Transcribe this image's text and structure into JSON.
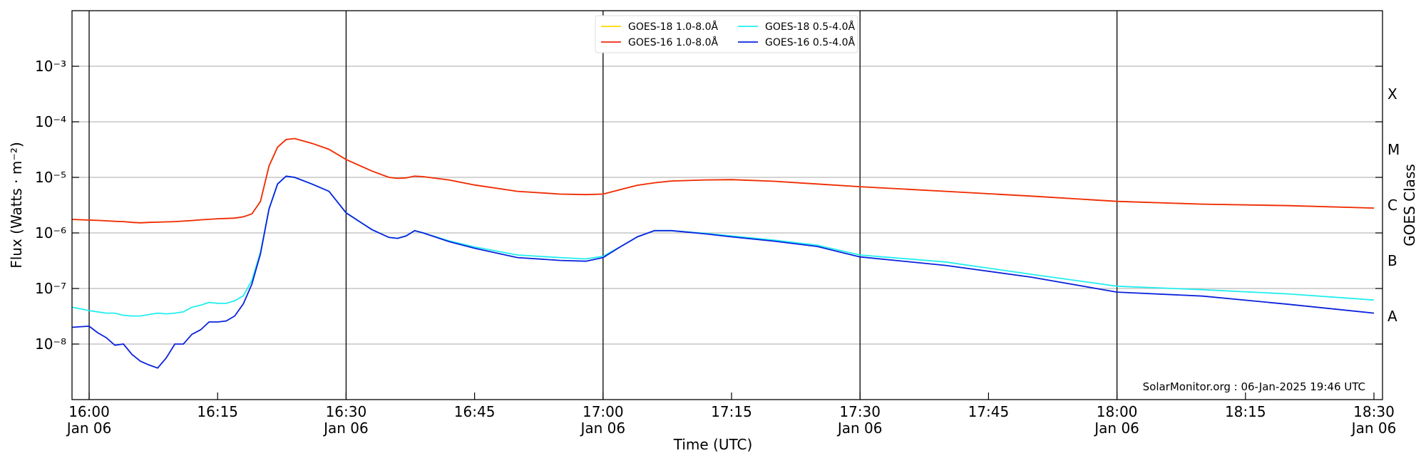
{
  "chart_data": {
    "type": "line",
    "xlabel": "Time (UTC)",
    "ylabel": "Flux (Watts · m⁻²)",
    "y2label": "GOES Class",
    "annotation": "SolarMonitor.org : 06-Jan-2025 19:46 UTC",
    "log_y": true,
    "grid": true,
    "legend": "upper center",
    "x": [
      "15:58",
      "16:00",
      "16:01",
      "16:02",
      "16:03",
      "16:04",
      "16:05",
      "16:06",
      "16:07",
      "16:08",
      "16:09",
      "16:10",
      "16:11",
      "16:12",
      "16:13",
      "16:14",
      "16:15",
      "16:16",
      "16:17",
      "16:18",
      "16:19",
      "16:20",
      "16:21",
      "16:22",
      "16:23",
      "16:24",
      "16:26",
      "16:28",
      "16:30",
      "16:33",
      "16:35",
      "16:36",
      "16:37",
      "16:38",
      "16:39",
      "16:42",
      "16:45",
      "16:50",
      "16:55",
      "16:58",
      "17:00",
      "17:02",
      "17:04",
      "17:06",
      "17:08",
      "17:12",
      "17:15",
      "17:20",
      "17:25",
      "17:30",
      "17:40",
      "17:50",
      "18:00",
      "18:10",
      "18:20",
      "18:30"
    ],
    "series": [
      {
        "name": "GOES-18 1.0-8.0Å",
        "color": "#ffd700",
        "values": [
          1.75e-06,
          1.7e-06,
          1.68e-06,
          1.65e-06,
          1.62e-06,
          1.6e-06,
          1.55e-06,
          1.52e-06,
          1.55e-06,
          1.56e-06,
          1.58e-06,
          1.6e-06,
          1.63e-06,
          1.67e-06,
          1.72e-06,
          1.76e-06,
          1.8e-06,
          1.82e-06,
          1.85e-06,
          1.95e-06,
          2.2e-06,
          3.7e-06,
          1.6e-05,
          3.5e-05,
          4.8e-05,
          5e-05,
          4.1e-05,
          3.2e-05,
          2.1e-05,
          1.3e-05,
          1e-05,
          9.6e-06,
          9.8e-06,
          1.05e-05,
          1.03e-05,
          9e-06,
          7.3e-06,
          5.6e-06,
          5e-06,
          4.9e-06,
          5e-06,
          6e-06,
          7.2e-06,
          8e-06,
          8.6e-06,
          9e-06,
          9.1e-06,
          8.5e-06,
          7.6e-06,
          6.8e-06,
          5.6e-06,
          4.6e-06,
          3.7e-06,
          3.3e-06,
          3.1e-06,
          2.8e-06
        ]
      },
      {
        "name": "GOES-16 1.0-8.0Å",
        "color": "#f02a10",
        "values": [
          1.75e-06,
          1.7e-06,
          1.68e-06,
          1.65e-06,
          1.62e-06,
          1.6e-06,
          1.55e-06,
          1.52e-06,
          1.55e-06,
          1.56e-06,
          1.58e-06,
          1.6e-06,
          1.63e-06,
          1.67e-06,
          1.72e-06,
          1.76e-06,
          1.8e-06,
          1.82e-06,
          1.85e-06,
          1.95e-06,
          2.2e-06,
          3.7e-06,
          1.6e-05,
          3.5e-05,
          4.8e-05,
          5e-05,
          4.1e-05,
          3.2e-05,
          2.1e-05,
          1.3e-05,
          1e-05,
          9.6e-06,
          9.8e-06,
          1.05e-05,
          1.03e-05,
          9e-06,
          7.3e-06,
          5.6e-06,
          5e-06,
          4.9e-06,
          5e-06,
          6e-06,
          7.2e-06,
          8e-06,
          8.6e-06,
          9e-06,
          9.1e-06,
          8.5e-06,
          7.6e-06,
          6.8e-06,
          5.6e-06,
          4.6e-06,
          3.7e-06,
          3.3e-06,
          3.1e-06,
          2.8e-06
        ]
      },
      {
        "name": "GOES-18 0.5-4.0Å",
        "color": "#22eeee",
        "values": [
          4.6e-08,
          4e-08,
          3.8e-08,
          3.6e-08,
          3.6e-08,
          3.3e-08,
          3.2e-08,
          3.2e-08,
          3.4e-08,
          3.6e-08,
          3.5e-08,
          3.6e-08,
          3.8e-08,
          4.6e-08,
          5e-08,
          5.6e-08,
          5.4e-08,
          5.4e-08,
          6e-08,
          7.4e-08,
          1.4e-07,
          4.5e-07,
          2.7e-06,
          7.6e-06,
          1.05e-05,
          1e-05,
          7.6e-06,
          5.6e-06,
          2.3e-06,
          1.15e-06,
          8.3e-07,
          8e-07,
          8.8e-07,
          1.1e-06,
          1e-06,
          7.2e-07,
          5.6e-07,
          4e-07,
          3.6e-07,
          3.4e-07,
          3.8e-07,
          5.6e-07,
          8.5e-07,
          1.1e-06,
          1.1e-06,
          9.8e-07,
          8.8e-07,
          7.4e-07,
          6e-07,
          4e-07,
          3e-07,
          1.8e-07,
          1.1e-07,
          9.5e-08,
          8e-08,
          6.2e-08
        ]
      },
      {
        "name": "GOES-16 0.5-4.0Å",
        "color": "#0a22dd",
        "values": [
          2e-08,
          2.1e-08,
          1.6e-08,
          1.3e-08,
          9.5e-09,
          1e-08,
          6.5e-09,
          4.9e-09,
          4.2e-09,
          3.7e-09,
          5.6e-09,
          1e-08,
          1e-08,
          1.5e-08,
          1.8e-08,
          2.5e-08,
          2.5e-08,
          2.6e-08,
          3.2e-08,
          5.3e-08,
          1.2e-07,
          4.2e-07,
          2.7e-06,
          7.6e-06,
          1.05e-05,
          1e-05,
          7.6e-06,
          5.6e-06,
          2.3e-06,
          1.15e-06,
          8.3e-07,
          8e-07,
          8.8e-07,
          1.1e-06,
          1e-06,
          7e-07,
          5.3e-07,
          3.6e-07,
          3.2e-07,
          3.1e-07,
          3.6e-07,
          5.6e-07,
          8.5e-07,
          1.1e-06,
          1.1e-06,
          9.6e-07,
          8.5e-07,
          7.1e-07,
          5.7e-07,
          3.7e-07,
          2.6e-07,
          1.6e-07,
          8.6e-08,
          7.3e-08,
          5.2e-08,
          3.6e-08
        ]
      }
    ],
    "xlim": [
      "15:58",
      "18:31"
    ],
    "xticks": [
      {
        "value": "16:00",
        "label": "16:00\nJan 06"
      },
      {
        "value": "16:15",
        "label": "16:15"
      },
      {
        "value": "16:30",
        "label": "16:30\nJan 06"
      },
      {
        "value": "16:45",
        "label": "16:45"
      },
      {
        "value": "17:00",
        "label": "17:00\nJan 06"
      },
      {
        "value": "17:15",
        "label": "17:15"
      },
      {
        "value": "17:30",
        "label": "17:30\nJan 06"
      },
      {
        "value": "17:45",
        "label": "17:45"
      },
      {
        "value": "18:00",
        "label": "18:00\nJan 06"
      },
      {
        "value": "18:15",
        "label": "18:15"
      },
      {
        "value": "18:30",
        "label": "18:30\nJan 06"
      }
    ],
    "vlines": [
      "16:00",
      "16:30",
      "17:00",
      "17:30",
      "18:00"
    ],
    "ylim": [
      1e-09,
      0.01
    ],
    "yticks": [
      {
        "value": 1e-08,
        "label": "10⁻⁸"
      },
      {
        "value": 1e-07,
        "label": "10⁻⁷"
      },
      {
        "value": 1e-06,
        "label": "10⁻⁶"
      },
      {
        "value": 1e-05,
        "label": "10⁻⁵"
      },
      {
        "value": 0.0001,
        "label": "10⁻⁴"
      },
      {
        "value": 0.001,
        "label": "10⁻³"
      }
    ],
    "y2ticks": [
      {
        "value": 1e-08,
        "label": "A"
      },
      {
        "value": 1e-07,
        "label": "B"
      },
      {
        "value": 1e-06,
        "label": "C"
      },
      {
        "value": 1e-05,
        "label": "M"
      },
      {
        "value": 0.0001,
        "label": "X"
      }
    ]
  }
}
